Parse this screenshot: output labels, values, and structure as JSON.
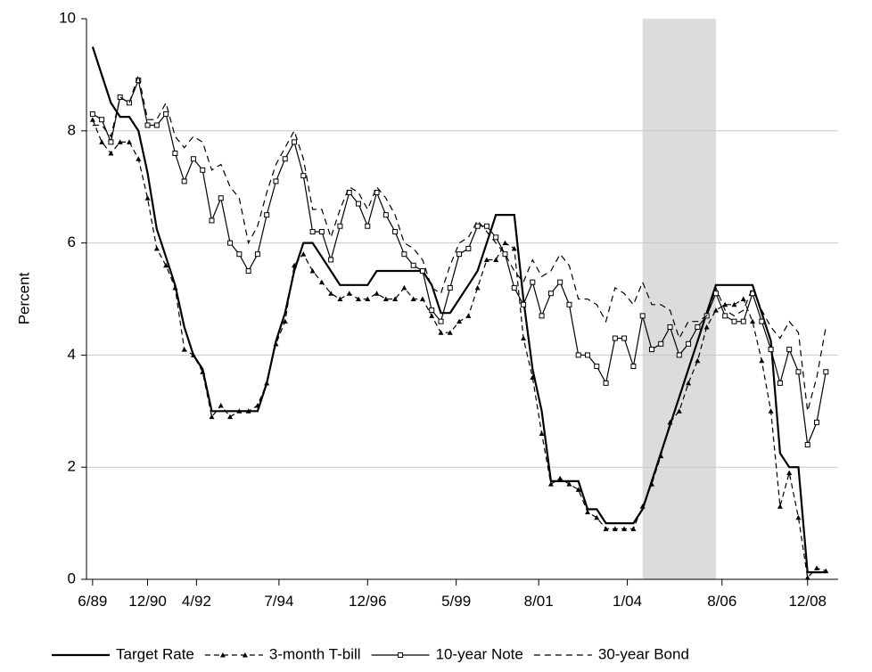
{
  "chart_data": {
    "type": "line",
    "ylabel": "Percent",
    "x": [
      "1989-06",
      "1989-09",
      "1989-12",
      "1990-03",
      "1990-06",
      "1990-09",
      "1990-12",
      "1991-03",
      "1991-06",
      "1991-09",
      "1991-12",
      "1992-03",
      "1992-06",
      "1992-09",
      "1992-12",
      "1993-03",
      "1993-06",
      "1993-09",
      "1993-12",
      "1994-03",
      "1994-06",
      "1994-09",
      "1994-12",
      "1995-03",
      "1995-06",
      "1995-09",
      "1995-12",
      "1996-03",
      "1996-06",
      "1996-09",
      "1996-12",
      "1997-03",
      "1997-06",
      "1997-09",
      "1997-12",
      "1998-03",
      "1998-06",
      "1998-09",
      "1998-12",
      "1999-03",
      "1999-06",
      "1999-09",
      "1999-12",
      "2000-03",
      "2000-06",
      "2000-09",
      "2000-12",
      "2001-03",
      "2001-06",
      "2001-09",
      "2001-12",
      "2002-03",
      "2002-06",
      "2002-09",
      "2002-12",
      "2003-03",
      "2003-06",
      "2003-09",
      "2003-12",
      "2004-03",
      "2004-06",
      "2004-09",
      "2004-12",
      "2005-03",
      "2005-06",
      "2005-09",
      "2005-12",
      "2006-03",
      "2006-06",
      "2006-09",
      "2006-12",
      "2007-03",
      "2007-06",
      "2007-09",
      "2007-12",
      "2008-03",
      "2008-06",
      "2008-09",
      "2008-12",
      "2009-03",
      "2009-06"
    ],
    "series": [
      {
        "name": "Target Rate",
        "color": "#000000",
        "dash": "none",
        "marker": "none",
        "width": 2.2,
        "values": [
          9.5,
          9.0,
          8.5,
          8.25,
          8.25,
          8.0,
          7.25,
          6.25,
          5.75,
          5.25,
          4.5,
          4.0,
          3.75,
          3.0,
          3.0,
          3.0,
          3.0,
          3.0,
          3.0,
          3.5,
          4.25,
          4.75,
          5.5,
          6.0,
          6.0,
          5.75,
          5.5,
          5.25,
          5.25,
          5.25,
          5.25,
          5.5,
          5.5,
          5.5,
          5.5,
          5.5,
          5.5,
          5.25,
          4.75,
          4.75,
          5.0,
          5.25,
          5.5,
          6.0,
          6.5,
          6.5,
          6.5,
          5.0,
          3.75,
          3.0,
          1.75,
          1.75,
          1.75,
          1.75,
          1.25,
          1.25,
          1.0,
          1.0,
          1.0,
          1.0,
          1.25,
          1.75,
          2.25,
          2.75,
          3.25,
          3.75,
          4.25,
          4.75,
          5.25,
          5.25,
          5.25,
          5.25,
          5.25,
          4.75,
          4.25,
          2.25,
          2.0,
          2.0,
          0.125,
          0.125,
          0.125
        ]
      },
      {
        "name": "3-month T-bill",
        "color": "#000000",
        "dash": "6,4",
        "marker": "triangle",
        "width": 1.2,
        "values": [
          8.2,
          7.8,
          7.6,
          7.8,
          7.8,
          7.5,
          6.8,
          5.9,
          5.6,
          5.2,
          4.1,
          4.0,
          3.7,
          2.9,
          3.1,
          2.9,
          3.0,
          3.0,
          3.1,
          3.5,
          4.2,
          4.6,
          5.6,
          5.8,
          5.5,
          5.3,
          5.1,
          5.0,
          5.1,
          5.0,
          5.0,
          5.1,
          5.0,
          5.0,
          5.2,
          5.0,
          5.0,
          4.7,
          4.4,
          4.4,
          4.6,
          4.7,
          5.2,
          5.7,
          5.7,
          6.0,
          5.9,
          4.3,
          3.6,
          2.6,
          1.7,
          1.8,
          1.7,
          1.6,
          1.2,
          1.1,
          0.9,
          0.9,
          0.9,
          0.9,
          1.3,
          1.7,
          2.2,
          2.8,
          3.0,
          3.5,
          3.9,
          4.5,
          4.8,
          4.9,
          4.9,
          5.0,
          4.6,
          3.9,
          3.0,
          1.3,
          1.9,
          1.1,
          0.03,
          0.2,
          0.15
        ]
      },
      {
        "name": "10-year Note",
        "color": "#000000",
        "dash": "none",
        "marker": "square",
        "width": 1.2,
        "values": [
          8.3,
          8.2,
          7.8,
          8.6,
          8.5,
          8.9,
          8.1,
          8.1,
          8.3,
          7.6,
          7.1,
          7.5,
          7.3,
          6.4,
          6.8,
          6.0,
          5.8,
          5.5,
          5.8,
          6.5,
          7.1,
          7.5,
          7.8,
          7.2,
          6.2,
          6.2,
          5.7,
          6.3,
          6.9,
          6.7,
          6.3,
          6.9,
          6.5,
          6.2,
          5.8,
          5.6,
          5.5,
          4.8,
          4.6,
          5.2,
          5.8,
          5.9,
          6.3,
          6.3,
          6.1,
          5.8,
          5.2,
          4.9,
          5.3,
          4.7,
          5.1,
          5.3,
          4.9,
          4.0,
          4.0,
          3.8,
          3.5,
          4.3,
          4.3,
          3.8,
          4.7,
          4.1,
          4.2,
          4.5,
          4.0,
          4.2,
          4.5,
          4.7,
          5.1,
          4.7,
          4.6,
          4.6,
          5.1,
          4.6,
          4.1,
          3.5,
          4.1,
          3.7,
          2.4,
          2.8,
          3.7
        ]
      },
      {
        "name": "30-year Bond",
        "color": "#000000",
        "dash": "7,5",
        "marker": "none",
        "width": 1.2,
        "values": [
          8.1,
          8.1,
          7.9,
          8.6,
          8.5,
          9.0,
          8.2,
          8.2,
          8.5,
          7.9,
          7.7,
          7.9,
          7.8,
          7.3,
          7.4,
          7.0,
          6.8,
          6.0,
          6.3,
          6.9,
          7.4,
          7.7,
          8.0,
          7.5,
          6.6,
          6.6,
          6.1,
          6.6,
          7.0,
          6.9,
          6.6,
          7.0,
          6.8,
          6.5,
          6.0,
          5.9,
          5.7,
          5.2,
          5.1,
          5.6,
          6.0,
          6.1,
          6.4,
          6.2,
          6.0,
          5.8,
          5.5,
          5.3,
          5.7,
          5.4,
          5.5,
          5.8,
          5.6,
          5.0,
          5.0,
          4.9,
          4.6,
          5.2,
          5.1,
          4.9,
          5.3,
          4.9,
          4.9,
          4.8,
          4.3,
          4.6,
          4.6,
          4.7,
          5.2,
          4.8,
          4.7,
          4.8,
          5.2,
          4.8,
          4.5,
          4.3,
          4.6,
          4.4,
          3.0,
          3.6,
          4.5
        ]
      }
    ],
    "xlim": [
      "1989-04",
      "2009-10"
    ],
    "xticks": [
      {
        "value": "1989-06",
        "label": "6/89"
      },
      {
        "value": "1990-12",
        "label": "12/90"
      },
      {
        "value": "1992-04",
        "label": "4/92"
      },
      {
        "value": "1994-07",
        "label": "7/94"
      },
      {
        "value": "1996-12",
        "label": "12/96"
      },
      {
        "value": "1999-05",
        "label": "5/99"
      },
      {
        "value": "2001-08",
        "label": "8/01"
      },
      {
        "value": "2004-01",
        "label": "1/04"
      },
      {
        "value": "2006-08",
        "label": "8/06"
      },
      {
        "value": "2008-12",
        "label": "12/08"
      }
    ],
    "ylim": [
      0,
      10
    ],
    "yticks": [
      0,
      2,
      4,
      6,
      8,
      10
    ],
    "grid": true,
    "shade": [
      "2004-06",
      "2006-06"
    ],
    "shade_color": "#dcdcdc",
    "legend": "bottom"
  }
}
